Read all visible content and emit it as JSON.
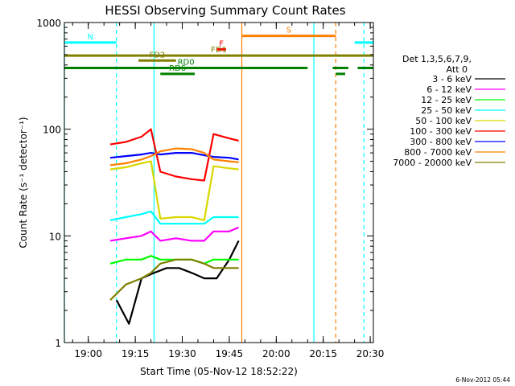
{
  "chart_data": {
    "type": "line",
    "title": "HESSI Observing Summary Count Rates",
    "xlabel": "Start Time (05-Nov-12 18:52:22)",
    "ylabel": "Count Rate (s⁻¹ detector⁻¹)",
    "yscale": "log",
    "xlim": [
      "18:52:22",
      "20:31:00"
    ],
    "ylim": [
      1,
      1000
    ],
    "x_ticks": [
      "19:00",
      "19:15",
      "19:30",
      "19:45",
      "20:00",
      "20:15",
      "20:30"
    ],
    "y_ticks": [
      "1",
      "10",
      "100",
      "1000"
    ],
    "grid": false,
    "legend_position": "right",
    "legend_header": [
      "Det 1,3,5,6,7,9,",
      "Att 0"
    ],
    "series": [
      {
        "name": "3 - 6 keV",
        "color": "#000000",
        "points": [
          [
            "19:09",
            2.5
          ],
          [
            "19:13",
            1.5
          ],
          [
            "19:17",
            4
          ],
          [
            "19:21",
            4.5
          ],
          [
            "19:25",
            5
          ],
          [
            "19:29",
            5
          ],
          [
            "19:33",
            4.5
          ],
          [
            "19:37",
            4
          ],
          [
            "19:41",
            4
          ],
          [
            "19:45",
            6
          ],
          [
            "19:48",
            9
          ]
        ]
      },
      {
        "name": "6 - 12 keV",
        "color": "#ff00ff",
        "points": [
          [
            "19:07",
            9
          ],
          [
            "19:12",
            9.5
          ],
          [
            "19:17",
            10
          ],
          [
            "19:20",
            11
          ],
          [
            "19:23",
            9
          ],
          [
            "19:28",
            9.5
          ],
          [
            "19:33",
            9
          ],
          [
            "19:37",
            9
          ],
          [
            "19:40",
            11
          ],
          [
            "19:45",
            11
          ],
          [
            "19:48",
            12
          ]
        ]
      },
      {
        "name": "12 - 25 keV",
        "color": "#00ff00",
        "points": [
          [
            "19:07",
            5.5
          ],
          [
            "19:12",
            6
          ],
          [
            "19:17",
            6
          ],
          [
            "19:20",
            6.5
          ],
          [
            "19:23",
            6
          ],
          [
            "19:28",
            6
          ],
          [
            "19:33",
            6
          ],
          [
            "19:37",
            5.5
          ],
          [
            "19:40",
            6
          ],
          [
            "19:45",
            6
          ],
          [
            "19:48",
            6
          ]
        ]
      },
      {
        "name": "25 - 50 keV",
        "color": "#00ffff",
        "points": [
          [
            "19:07",
            14
          ],
          [
            "19:12",
            15
          ],
          [
            "19:17",
            16
          ],
          [
            "19:20",
            17
          ],
          [
            "19:23",
            13
          ],
          [
            "19:28",
            13
          ],
          [
            "19:33",
            13
          ],
          [
            "19:37",
            13
          ],
          [
            "19:40",
            15
          ],
          [
            "19:45",
            15
          ],
          [
            "19:48",
            15
          ]
        ]
      },
      {
        "name": "50 - 100 keV",
        "color": "#d8d800",
        "points": [
          [
            "19:07",
            42
          ],
          [
            "19:12",
            44
          ],
          [
            "19:17",
            48
          ],
          [
            "19:20",
            50
          ],
          [
            "19:23",
            14.5
          ],
          [
            "19:28",
            15
          ],
          [
            "19:33",
            15
          ],
          [
            "19:37",
            14
          ],
          [
            "19:40",
            45
          ],
          [
            "19:45",
            43
          ],
          [
            "19:48",
            42
          ]
        ]
      },
      {
        "name": "100 - 300 keV",
        "color": "#ff0000",
        "points": [
          [
            "19:07",
            72
          ],
          [
            "19:12",
            76
          ],
          [
            "19:17",
            85
          ],
          [
            "19:20",
            100
          ],
          [
            "19:23",
            40
          ],
          [
            "19:28",
            36
          ],
          [
            "19:33",
            34
          ],
          [
            "19:37",
            33
          ],
          [
            "19:40",
            90
          ],
          [
            "19:45",
            82
          ],
          [
            "19:48",
            78
          ]
        ]
      },
      {
        "name": "300 - 800 keV",
        "color": "#0000ff",
        "points": [
          [
            "19:07",
            54
          ],
          [
            "19:12",
            56
          ],
          [
            "19:17",
            58
          ],
          [
            "19:20",
            60
          ],
          [
            "19:23",
            58
          ],
          [
            "19:28",
            60
          ],
          [
            "19:33",
            60
          ],
          [
            "19:37",
            57
          ],
          [
            "19:40",
            55
          ],
          [
            "19:45",
            54
          ],
          [
            "19:48",
            52
          ]
        ]
      },
      {
        "name": "800 - 7000 keV",
        "color": "#ff8000",
        "points": [
          [
            "19:07",
            46
          ],
          [
            "19:12",
            48
          ],
          [
            "19:17",
            52
          ],
          [
            "19:20",
            56
          ],
          [
            "19:23",
            62
          ],
          [
            "19:28",
            66
          ],
          [
            "19:33",
            65
          ],
          [
            "19:37",
            60
          ],
          [
            "19:40",
            52
          ],
          [
            "19:45",
            50
          ],
          [
            "19:48",
            49
          ]
        ]
      },
      {
        "name": "7000 - 20000 keV",
        "color": "#808000",
        "points": [
          [
            "19:07",
            2.5
          ],
          [
            "19:12",
            3.5
          ],
          [
            "19:17",
            4
          ],
          [
            "19:20",
            4.5
          ],
          [
            "19:23",
            5.5
          ],
          [
            "19:28",
            6
          ],
          [
            "19:33",
            6
          ],
          [
            "19:37",
            5.5
          ],
          [
            "19:40",
            5
          ],
          [
            "19:45",
            5
          ],
          [
            "19:48",
            5
          ]
        ]
      }
    ],
    "flag_bars": [
      {
        "label": "N",
        "color": "#00ffff",
        "level": 650,
        "segments": [
          [
            "18:52:22",
            "19:09"
          ],
          [
            "20:25",
            "20:31"
          ]
        ]
      },
      {
        "label": "S",
        "color": "#ff8000",
        "level": 750,
        "segments": [
          [
            "19:49",
            "20:19"
          ]
        ]
      },
      {
        "label": "F",
        "color": "#ff0000",
        "level": 560,
        "segments": [
          [
            "19:41",
            "19:44"
          ]
        ]
      },
      {
        "label": "FD1",
        "color": "#808000",
        "level": 490,
        "segments": [
          [
            "18:52:22",
            "20:31"
          ]
        ]
      },
      {
        "label": "FD2",
        "color": "#808000",
        "level": 440,
        "segments": [
          [
            "19:16",
            "19:28"
          ]
        ]
      },
      {
        "label": "RD0",
        "color": "#008000",
        "level": 375,
        "segments": [
          [
            "18:52:22",
            "20:10"
          ],
          [
            "20:18",
            "20:23"
          ],
          [
            "20:26",
            "20:31"
          ]
        ]
      },
      {
        "label": "RD6",
        "color": "#008000",
        "level": 330,
        "segments": [
          [
            "19:23",
            "19:34"
          ],
          [
            "20:19",
            "20:22"
          ]
        ]
      }
    ],
    "vertical_markers": [
      {
        "x": "18:52:22",
        "color": "#00ffff",
        "style": "solid"
      },
      {
        "x": "19:09",
        "color": "#00ffff",
        "style": "dashed"
      },
      {
        "x": "19:21",
        "color": "#00ffff",
        "style": "solid"
      },
      {
        "x": "19:49",
        "color": "#ff8000",
        "style": "solid"
      },
      {
        "x": "20:12",
        "color": "#00ffff",
        "style": "solid"
      },
      {
        "x": "20:19",
        "color": "#ff8000",
        "style": "dashed"
      },
      {
        "x": "20:28",
        "color": "#00ffff",
        "style": "dashed"
      }
    ],
    "footer_date": "6-Nov-2012 05:44"
  }
}
